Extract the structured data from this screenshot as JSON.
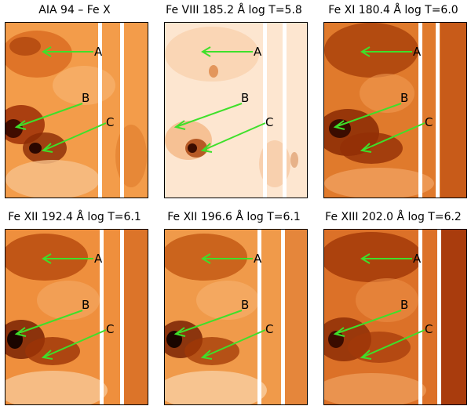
{
  "panels": [
    {
      "title": "AIA 94 – Fe X",
      "style": "aia94"
    },
    {
      "title": "Fe VIII 185.2 Å log T=5.8",
      "style": "fe8"
    },
    {
      "title": "Fe XI 180.4 Å log T=6.0",
      "style": "fe11"
    },
    {
      "title": "Fe XII 192.4 Å log T=6.1",
      "style": "fe12a"
    },
    {
      "title": "Fe XII 196.6 Å log T=6.1",
      "style": "fe12b"
    },
    {
      "title": "Fe XIII 202.0 Å log T=6.2",
      "style": "fe13"
    }
  ],
  "labels": {
    "a": "A",
    "b": "B",
    "c": "C"
  },
  "colors": {
    "arrow": "#3ee02a",
    "gap": "#ffffff",
    "frame": "#000000"
  }
}
